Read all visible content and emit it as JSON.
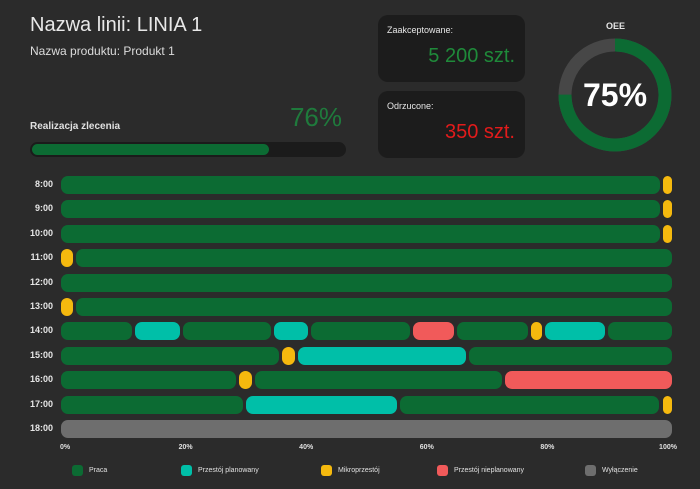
{
  "header": {
    "line_name": "Nazwa linii: LINIA 1",
    "product_name": "Nazwa produktu: Produkt 1"
  },
  "order": {
    "label": "Realizacja zlecenia",
    "percent_text": "76%",
    "progress_fraction": 0.76
  },
  "accepted": {
    "label": "Zaakceptowane:",
    "value": "5 200 szt."
  },
  "rejected": {
    "label": "Odrzucone:",
    "value": "350 szt."
  },
  "oee": {
    "label": "OEE",
    "value_text": "75%",
    "fraction": 0.75
  },
  "colors": {
    "Praca": "#0c6b33",
    "Przestoj_planowany": "#00bfa8",
    "Mikroprzestoj": "#f5b90e",
    "Przestoj_nieplanowany": "#f15a5a",
    "Wylaczenie": "#6e6e6e",
    "gauge_track": "#474747"
  },
  "legend": [
    {
      "key": "Praca",
      "label": "Praca"
    },
    {
      "key": "Przestoj_planowany",
      "label": "Przestój planowany"
    },
    {
      "key": "Mikroprzestoj",
      "label": "Mikroprzestój"
    },
    {
      "key": "Przestoj_nieplanowany",
      "label": "Przestój nieplanowany"
    },
    {
      "key": "Wylaczenie",
      "label": "Wyłączenie"
    }
  ],
  "axis_ticks": [
    "0%",
    "20%",
    "40%",
    "60%",
    "80%",
    "100%"
  ],
  "chart_data": {
    "type": "bar",
    "categories": [
      "8:00",
      "9:00",
      "10:00",
      "11:00",
      "12:00",
      "13:00",
      "14:00",
      "15:00",
      "16:00",
      "17:00",
      "18:00"
    ],
    "xlim": [
      0,
      100
    ],
    "rows": [
      {
        "hour": "8:00",
        "segments": [
          {
            "state": "Praca",
            "start": 0,
            "end": 98.2
          },
          {
            "state": "Mikroprzestoj",
            "start": 98.2,
            "end": 100
          }
        ]
      },
      {
        "hour": "9:00",
        "segments": [
          {
            "state": "Praca",
            "start": 0,
            "end": 98.2
          },
          {
            "state": "Mikroprzestoj",
            "start": 98.2,
            "end": 100
          }
        ]
      },
      {
        "hour": "10:00",
        "segments": [
          {
            "state": "Praca",
            "start": 0,
            "end": 98.2
          },
          {
            "state": "Mikroprzestoj",
            "start": 98.2,
            "end": 100
          }
        ]
      },
      {
        "hour": "11:00",
        "segments": [
          {
            "state": "Mikroprzestoj",
            "start": 0,
            "end": 2.2
          },
          {
            "state": "Praca",
            "start": 2.2,
            "end": 100
          }
        ]
      },
      {
        "hour": "12:00",
        "segments": [
          {
            "state": "Praca",
            "start": 0,
            "end": 100
          }
        ]
      },
      {
        "hour": "13:00",
        "segments": [
          {
            "state": "Mikroprzestoj",
            "start": 0,
            "end": 2.2
          },
          {
            "state": "Praca",
            "start": 2.2,
            "end": 100
          }
        ]
      },
      {
        "hour": "14:00",
        "segments": [
          {
            "state": "Praca",
            "start": 0,
            "end": 11.8
          },
          {
            "state": "Przestoj_planowany",
            "start": 11.8,
            "end": 19.8
          },
          {
            "state": "Praca",
            "start": 19.8,
            "end": 34.6
          },
          {
            "state": "Przestoj_planowany",
            "start": 34.6,
            "end": 40.6
          },
          {
            "state": "Praca",
            "start": 40.6,
            "end": 57.3
          },
          {
            "state": "Przestoj_nieplanowany",
            "start": 57.3,
            "end": 64.6
          },
          {
            "state": "Praca",
            "start": 64.6,
            "end": 76.6
          },
          {
            "state": "Mikroprzestoj",
            "start": 76.6,
            "end": 79.0
          },
          {
            "state": "Przestoj_planowany",
            "start": 79.0,
            "end": 89.3
          },
          {
            "state": "Praca",
            "start": 89.3,
            "end": 100
          }
        ]
      },
      {
        "hour": "15:00",
        "segments": [
          {
            "state": "Praca",
            "start": 0,
            "end": 35.9
          },
          {
            "state": "Mikroprzestoj",
            "start": 35.9,
            "end": 38.5
          },
          {
            "state": "Przestoj_planowany",
            "start": 38.5,
            "end": 66.5
          },
          {
            "state": "Praca",
            "start": 66.5,
            "end": 100
          }
        ]
      },
      {
        "hour": "16:00",
        "segments": [
          {
            "state": "Praca",
            "start": 0,
            "end": 28.9
          },
          {
            "state": "Mikroprzestoj",
            "start": 28.9,
            "end": 31.5
          },
          {
            "state": "Praca",
            "start": 31.5,
            "end": 72.4
          },
          {
            "state": "Przestoj_nieplanowany",
            "start": 72.4,
            "end": 100
          }
        ]
      },
      {
        "hour": "17:00",
        "segments": [
          {
            "state": "Praca",
            "start": 0,
            "end": 30.1
          },
          {
            "state": "Przestoj_planowany",
            "start": 30.1,
            "end": 55.2
          },
          {
            "state": "Praca",
            "start": 55.2,
            "end": 98.2
          },
          {
            "state": "Mikroprzestoj",
            "start": 98.2,
            "end": 100
          }
        ]
      },
      {
        "hour": "18:00",
        "segments": [
          {
            "state": "Wylaczenie",
            "start": 0,
            "end": 100
          }
        ]
      }
    ]
  }
}
